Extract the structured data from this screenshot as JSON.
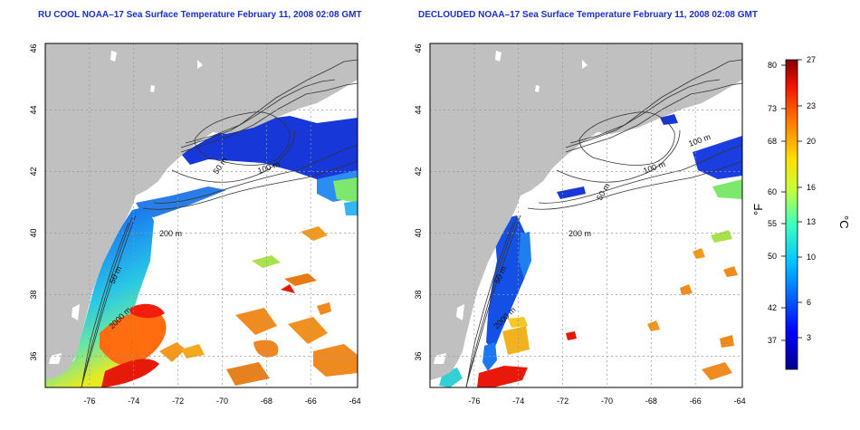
{
  "panels": [
    {
      "title": "RU COOL NOAA–17 Sea Surface Temperature February 11, 2008 02:08 GMT",
      "contour_labels": [
        "50 m",
        "100 m",
        "200 m",
        "50 m",
        "2000 m"
      ]
    },
    {
      "title": "DECLOUDED NOAA–17 Sea Surface Temperature February 11, 2008 02:08 GMT",
      "contour_labels": [
        "100 m",
        "100 m",
        "50 m",
        "200 m",
        "50 m",
        "2000 m"
      ]
    }
  ],
  "x_ticks": [
    "-76",
    "-74",
    "-72",
    "-70",
    "-68",
    "-66",
    "-64"
  ],
  "y_ticks": [
    "36",
    "38",
    "40",
    "42",
    "44",
    "46"
  ],
  "colorbar": {
    "f_ticks": [
      "80",
      "73",
      "68",
      "60",
      "55",
      "50",
      "42",
      "37"
    ],
    "c_ticks": [
      "27",
      "23",
      "20",
      "16",
      "13",
      "10",
      "6",
      "3"
    ],
    "f_label": "°F",
    "c_label": "°C"
  }
}
